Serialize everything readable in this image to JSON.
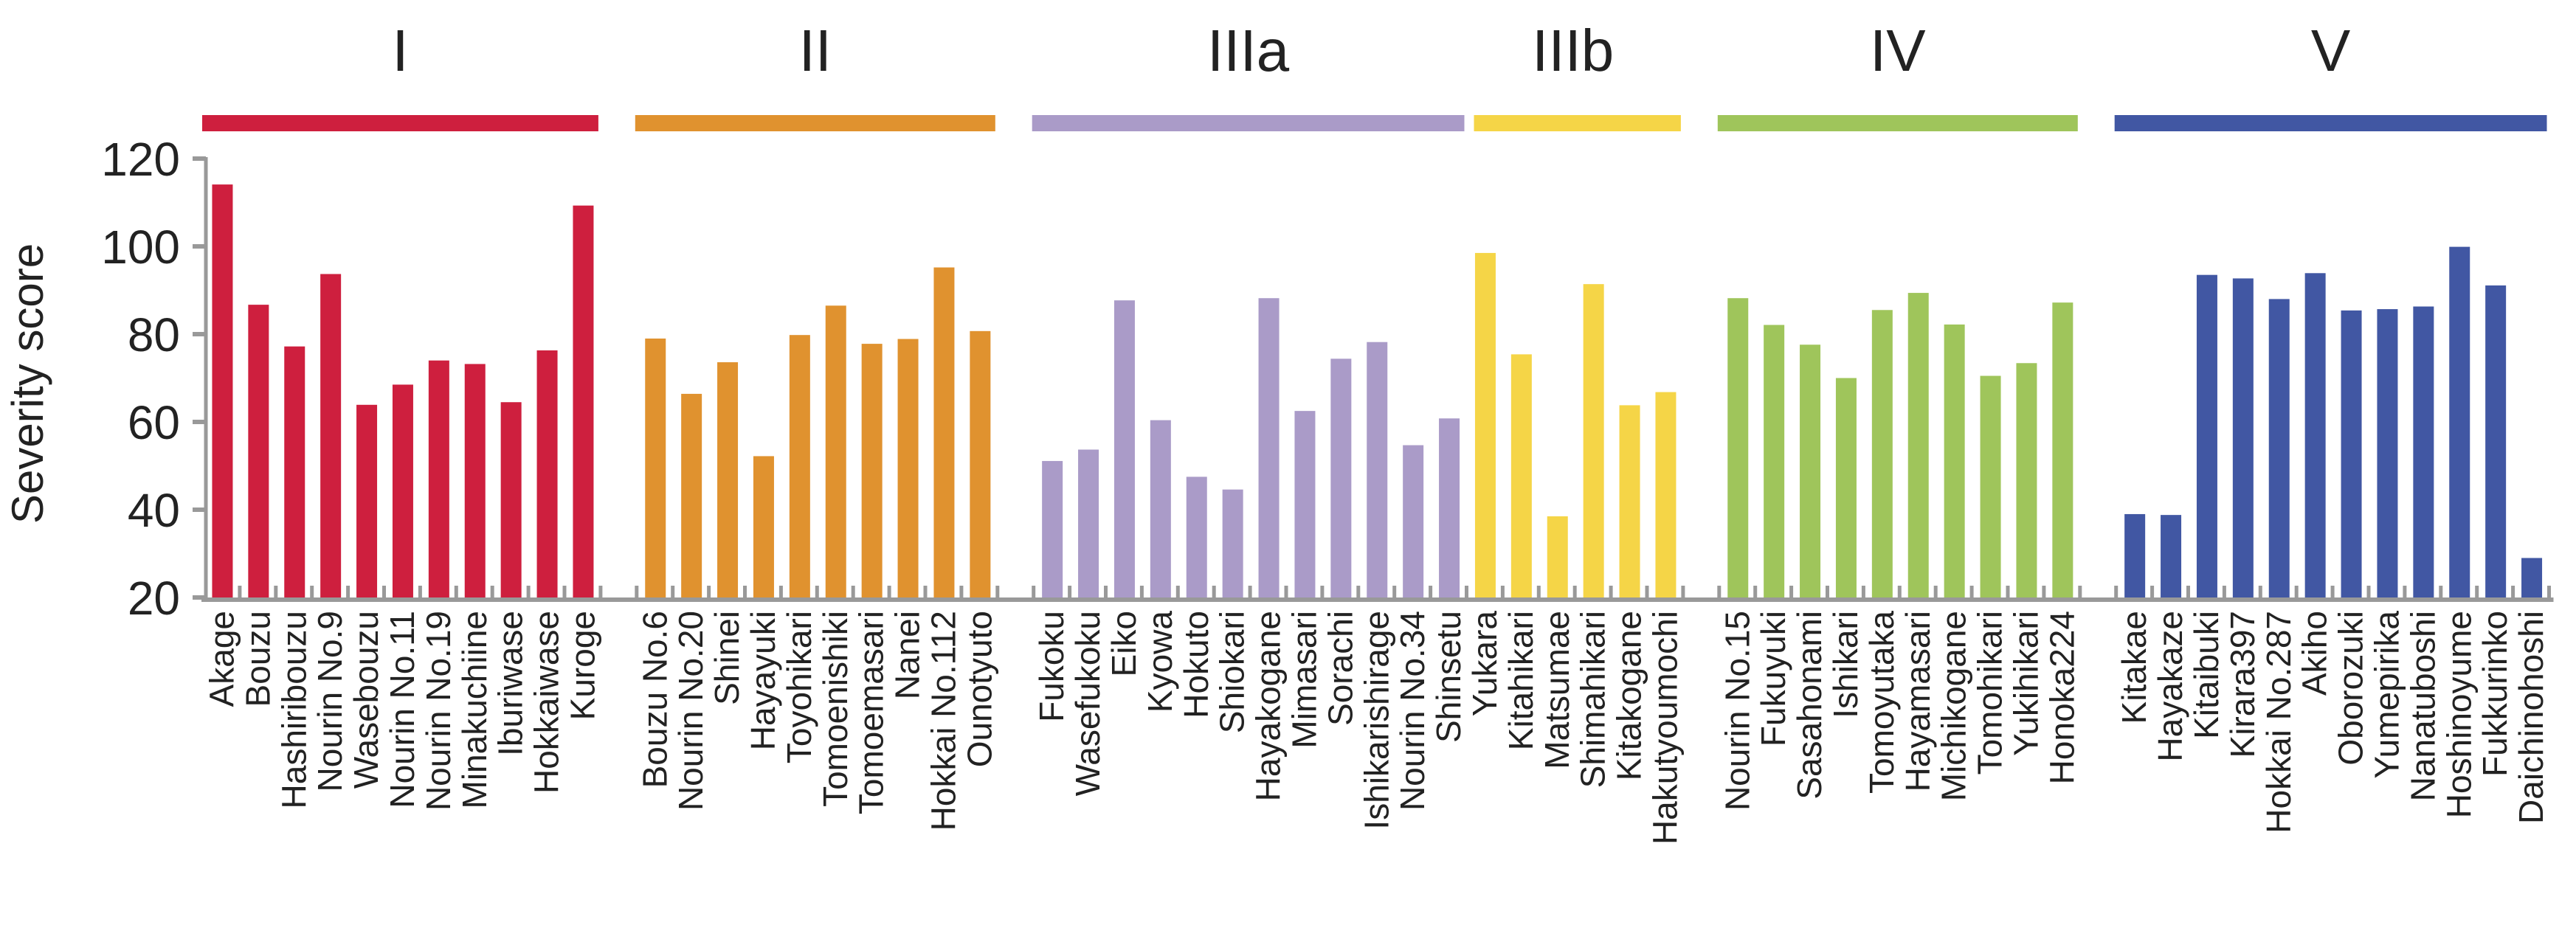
{
  "chart_data": {
    "type": "bar",
    "title": "",
    "xlabel": "",
    "ylabel": "Severity score",
    "ylim": [
      20,
      120
    ],
    "yticks": [
      20,
      40,
      60,
      80,
      100,
      120
    ],
    "grid": false,
    "groups": [
      {
        "name": "I",
        "color": "#CE1F3E",
        "categories": [
          "Akage",
          "Bouzu",
          "Hashiribouzu",
          "Nourin No.9",
          "Wasebouzu",
          "Nourin No.11",
          "Nourin No.19",
          "Minakuchiine",
          "Iburiwase",
          "Hokkaiwase",
          "Kuroge"
        ],
        "values": [
          114.1,
          86.7,
          77.2,
          93.7,
          63.9,
          68.5,
          74.0,
          73.2,
          64.5,
          76.3,
          109.3
        ]
      },
      {
        "name": "II",
        "color": "#E0922F",
        "categories": [
          "Bouzu No.6",
          "Nourin No.20",
          "Shinei",
          "Hayayuki",
          "Toyohikari",
          "Tomoenishiki",
          "Tomoemasari",
          "Nanei",
          "Hokkai No.112",
          "Ounotyuto"
        ],
        "values": [
          79.0,
          66.4,
          73.6,
          52.2,
          79.8,
          86.5,
          77.8,
          78.9,
          95.2,
          80.7
        ]
      },
      {
        "name": "IIIa",
        "color": "#AA9BC8",
        "categories": [
          "Fukoku",
          "Wasefukoku",
          "Eiko",
          "Kyowa",
          "Hokuto",
          "Shiokari",
          "Hayakogane",
          "Mimasari",
          "Sorachi",
          "Ishikarishirage",
          "Nourin No.34",
          "Shinsetu"
        ],
        "values": [
          51.1,
          53.7,
          87.7,
          60.4,
          47.5,
          44.6,
          88.2,
          62.5,
          74.4,
          78.2,
          54.7,
          60.8
        ]
      },
      {
        "name": "IIIb",
        "color": "#F5D547",
        "categories": [
          "Yukara",
          "Kitahikari",
          "Matsumae",
          "Shimahikari",
          "Kitakogane",
          "Hakutyoumochi"
        ],
        "values": [
          98.5,
          75.4,
          38.5,
          91.4,
          63.8,
          66.8
        ]
      },
      {
        "name": "IV",
        "color": "#9FC55B",
        "categories": [
          "Nourin No.15",
          "Fukuyuki",
          "Sasahonami",
          "Ishikari",
          "Tomoyutaka",
          "Hayamasari",
          "Michikogane",
          "Tomohikari",
          "Yukihikari",
          "Honoka224"
        ],
        "values": [
          88.2,
          82.1,
          77.6,
          70.0,
          85.5,
          89.4,
          82.2,
          70.5,
          73.4,
          87.2
        ]
      },
      {
        "name": "V",
        "color": "#4157A3",
        "categories": [
          "Kitakae",
          "Hayakaze",
          "Kitaibuki",
          "Kirara397",
          "Hokkai No.287",
          "Akiho",
          "Oborozuki",
          "Yumepirika",
          "Nanatuboshi",
          "Hoshinoyume",
          "Fukkurinko",
          "Daichinohoshi"
        ],
        "values": [
          39.0,
          38.8,
          93.5,
          92.7,
          88.0,
          93.9,
          85.4,
          85.7,
          86.3,
          99.9,
          91.1,
          29.0
        ]
      }
    ],
    "axis_color": "#999999"
  }
}
